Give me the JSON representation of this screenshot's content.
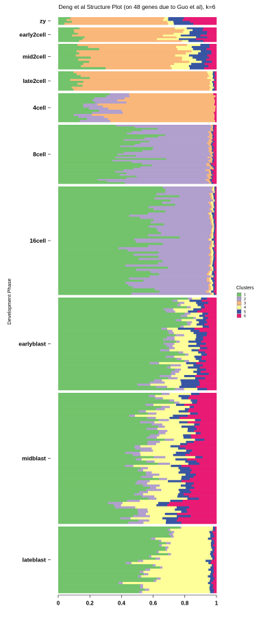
{
  "chart_data": {
    "type": "stacked-bar-horizontal",
    "title": "Deng et al Structure Plot (on 48 genes due to Guo et al), k=6",
    "xlabel": "",
    "ylabel": "Development Phase",
    "xlim": [
      0,
      1
    ],
    "x_ticks": [
      "0",
      "0.2",
      "0.4",
      "0.6",
      "0.8",
      "1"
    ],
    "legend": {
      "title": "Clusters",
      "position": "right",
      "entries": [
        {
          "label": "1",
          "color": "#72C36B"
        },
        {
          "label": "2",
          "color": "#B19FCE"
        },
        {
          "label": "3",
          "color": "#FAB77A"
        },
        {
          "label": "4",
          "color": "#FEFF99"
        },
        {
          "label": "5",
          "color": "#3755A3"
        },
        {
          "label": "6",
          "color": "#E81A74"
        }
      ]
    },
    "groups": [
      {
        "label": "zy",
        "rows": 4,
        "mix": [
          0.06,
          0.0,
          0.61,
          0.03,
          0.1,
          0.2
        ]
      },
      {
        "label": "early2cell",
        "rows": 8,
        "mix": [
          0.13,
          0.0,
          0.6,
          0.08,
          0.11,
          0.08
        ]
      },
      {
        "label": "mid2cell",
        "rows": 12,
        "mix": [
          0.18,
          0.0,
          0.6,
          0.08,
          0.09,
          0.05
        ]
      },
      {
        "label": "late2cell",
        "rows": 10,
        "mix": [
          0.1,
          0.0,
          0.86,
          0.02,
          0.01,
          0.01
        ]
      },
      {
        "label": "4cell",
        "rows": 14,
        "mix": [
          0.18,
          0.15,
          0.66,
          0.0,
          0.0,
          0.01
        ]
      },
      {
        "label": "8cell",
        "rows": 37,
        "mix": [
          0.48,
          0.47,
          0.02,
          0.0,
          0.01,
          0.02
        ]
      },
      {
        "label": "16cell",
        "rows": 50,
        "mix": [
          0.58,
          0.38,
          0.01,
          0.01,
          0.01,
          0.01
        ]
      },
      {
        "label": "earlyblast",
        "rows": 43,
        "mix": [
          0.73,
          0.04,
          0.0,
          0.09,
          0.06,
          0.08
        ]
      },
      {
        "label": "midblast",
        "rows": 60,
        "mix": [
          0.55,
          0.06,
          0.0,
          0.16,
          0.06,
          0.17
        ]
      },
      {
        "label": "lateblast",
        "rows": 30,
        "mix": [
          0.6,
          0.02,
          0.0,
          0.34,
          0.02,
          0.02
        ]
      }
    ]
  }
}
